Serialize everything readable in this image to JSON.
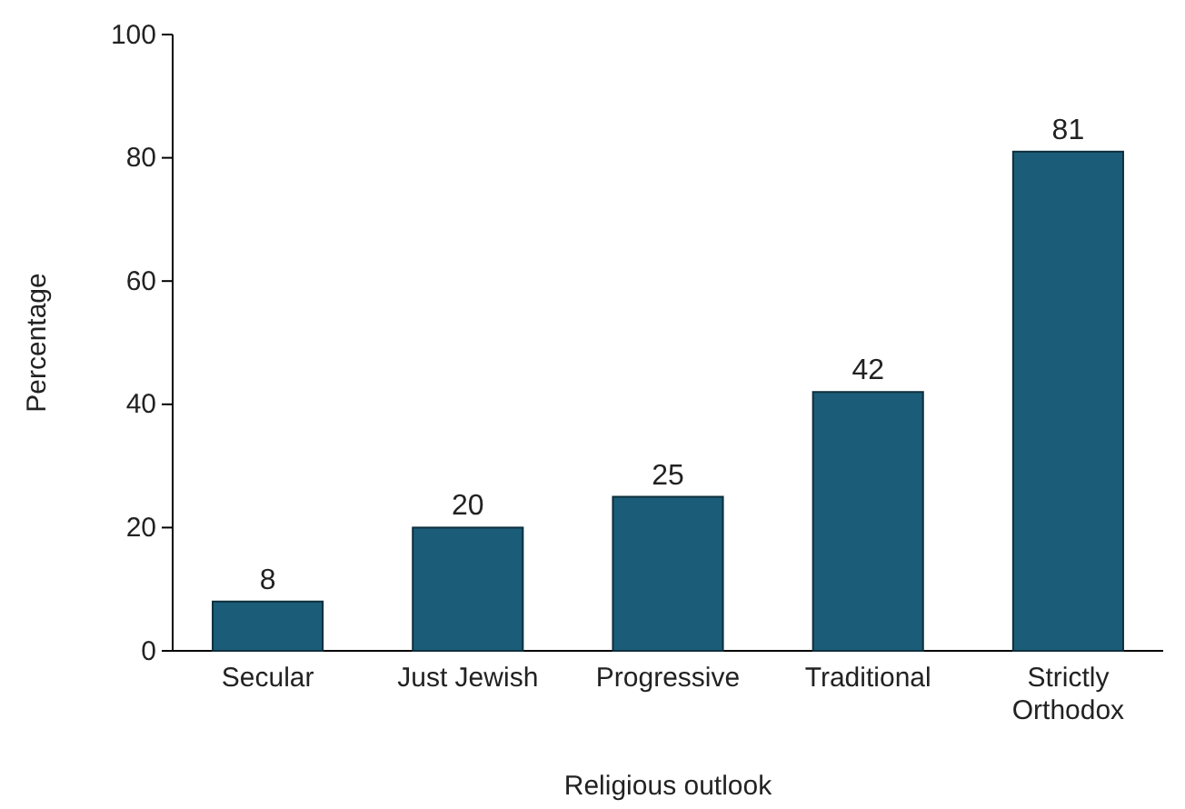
{
  "chart_data": {
    "type": "bar",
    "xlabel": "Religious outlook",
    "ylabel": "Percentage",
    "categories": [
      "Secular",
      "Just Jewish",
      "Progressive",
      "Traditional",
      "Strictly Orthodox"
    ],
    "values": [
      8,
      20,
      25,
      42,
      81
    ],
    "color": "#1b5d78",
    "ylim": [
      0,
      100
    ],
    "yticks": [
      0,
      20,
      40,
      60,
      80,
      100
    ],
    "data_labels": true
  }
}
